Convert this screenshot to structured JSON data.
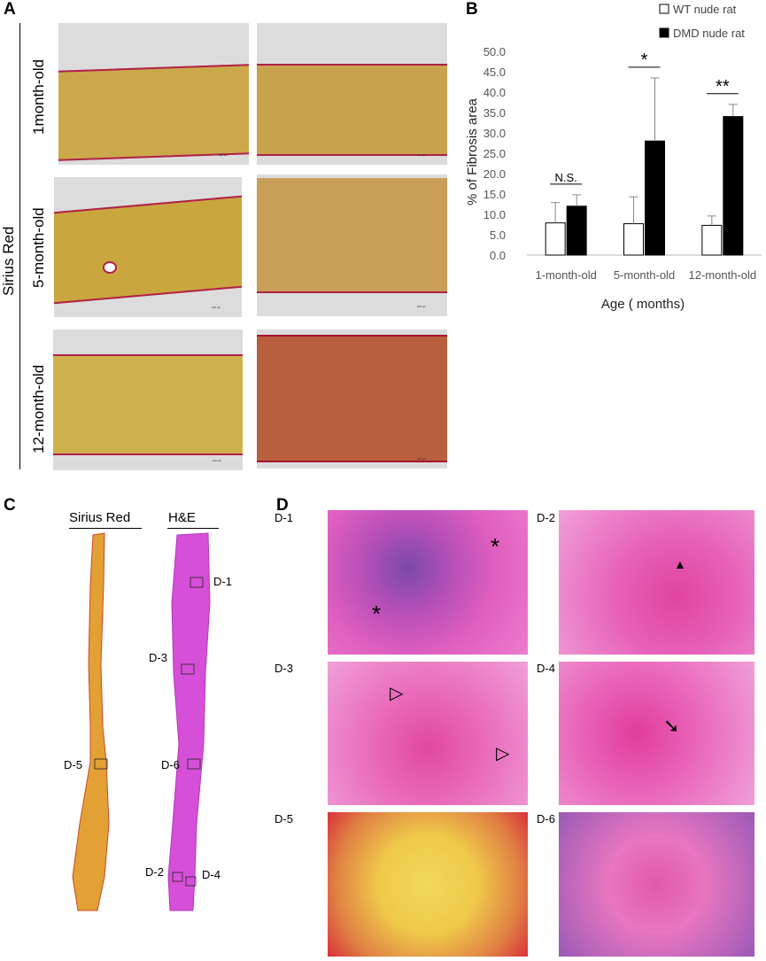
{
  "panels": {
    "a": "A",
    "b": "B",
    "c": "C",
    "d": "D"
  },
  "panel_a": {
    "stain_label": "Sirius Red",
    "row_labels": [
      "1month-old",
      "5-month-old",
      "12-month-old"
    ],
    "scale_label": "100 μm"
  },
  "panel_c": {
    "col_labels": [
      "Sirius Red",
      "H&E"
    ],
    "box_labels": [
      "D-1",
      "D-3",
      "D-5",
      "D-6",
      "D-2",
      "D-4"
    ]
  },
  "panel_d": {
    "tile_labels": [
      "D-1",
      "D-2",
      "D-3",
      "D-4",
      "D-5",
      "D-6"
    ],
    "asterisk": "*",
    "filled_triangle": "▲",
    "open_triangle": "▷",
    "arrow": "➘"
  },
  "colors": {
    "sirius_bg": "#d4b84c",
    "sirius_red": "#b8123a",
    "he_pink": "#e04fb8",
    "he_purple": "#4a2a8a",
    "dmd_bar": "#000000",
    "wt_bar": "#ffffff"
  },
  "chart_data": {
    "type": "bar",
    "categories": [
      "1-month-old",
      "5-month-old",
      "12-month-old"
    ],
    "series": [
      {
        "name": "WT nude rat",
        "values": [
          7.9,
          7.7,
          7.3
        ],
        "errors": [
          5.0,
          6.6,
          2.3
        ]
      },
      {
        "name": "DMD nude rat",
        "values": [
          12.0,
          28.0,
          34.0
        ],
        "errors": [
          2.8,
          15.5,
          3.0
        ]
      }
    ],
    "xlabel": "Age ( months)",
    "ylabel": "% of Fibrosis area",
    "ylim": [
      0,
      50
    ],
    "yticks": [
      "0.0",
      "5.0",
      "10.0",
      "15.0",
      "20.0",
      "25.0",
      "30.0",
      "35.0",
      "40.0",
      "45.0",
      "50.0"
    ],
    "significance": [
      "N.S.",
      "*",
      "**"
    ],
    "legend": "top-right",
    "grid": false
  }
}
